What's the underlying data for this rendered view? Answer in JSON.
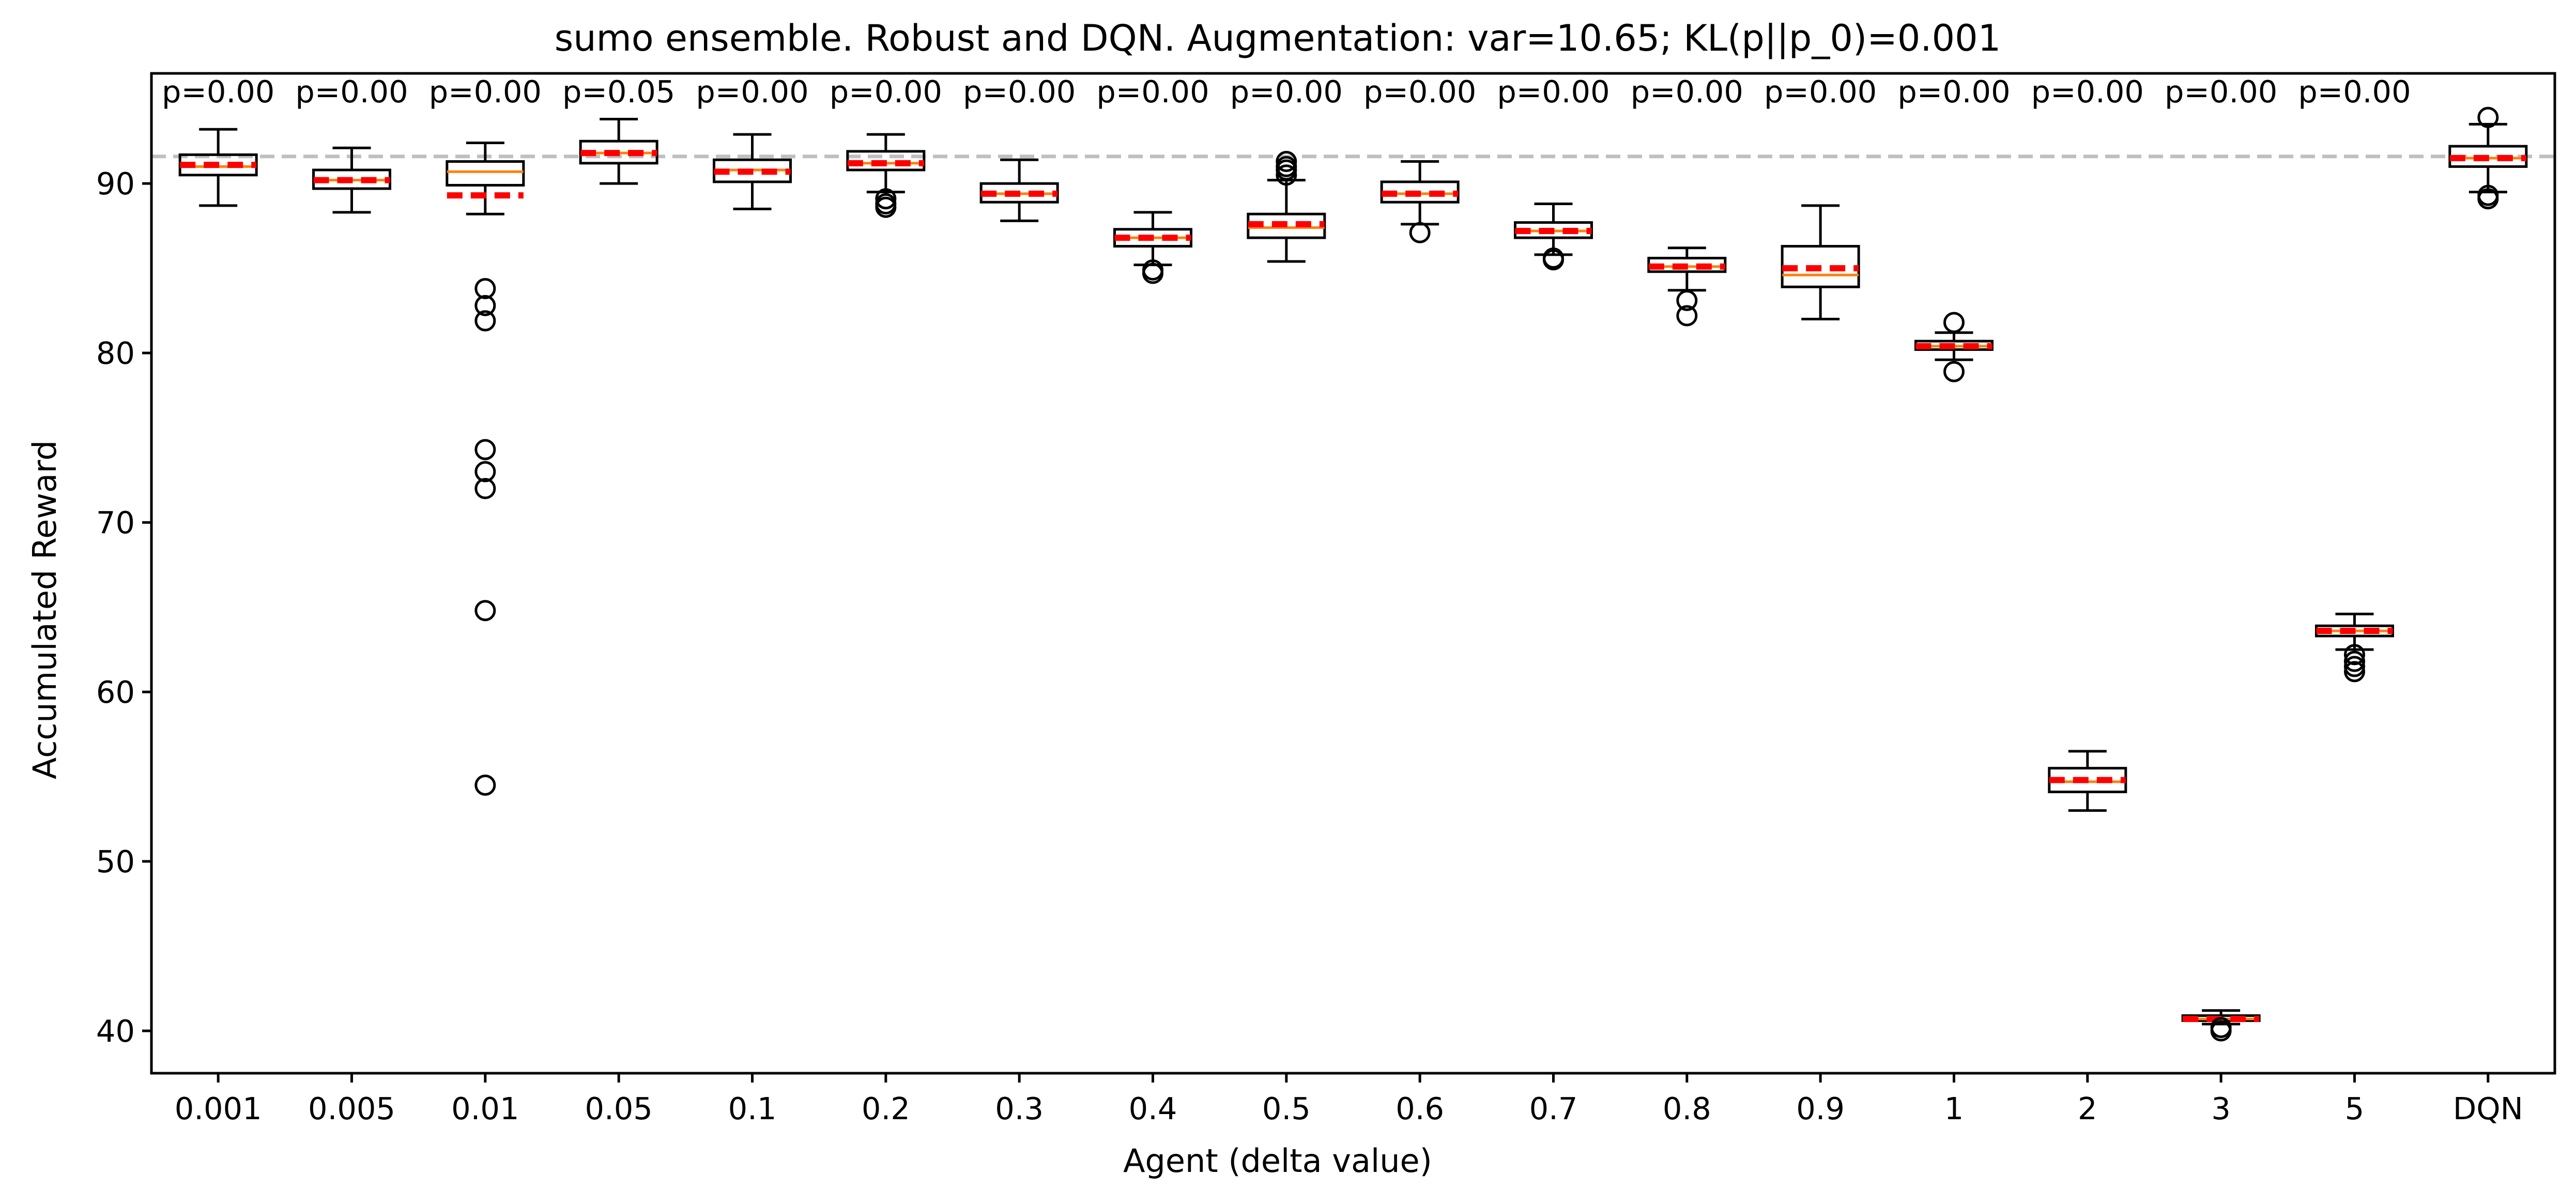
{
  "chart_data": {
    "type": "box",
    "title": "sumo ensemble. Robust and DQN. Augmentation: var=10.65; KL(p||p_0)=0.001",
    "xlabel": "Agent (delta value)",
    "ylabel": "Accumulated Reward",
    "ylim": [
      37.5,
      96.5
    ],
    "yticks": [
      40,
      50,
      60,
      70,
      80,
      90
    ],
    "reference_line": 91.6,
    "grid": false,
    "categories": [
      "0.001",
      "0.005",
      "0.01",
      "0.05",
      "0.1",
      "0.2",
      "0.3",
      "0.4",
      "0.5",
      "0.6",
      "0.7",
      "0.8",
      "0.9",
      "1",
      "2",
      "3",
      "5",
      "DQN"
    ],
    "p_values": [
      "p=0.00",
      "p=0.00",
      "p=0.00",
      "p=0.05",
      "p=0.00",
      "p=0.00",
      "p=0.00",
      "p=0.00",
      "p=0.00",
      "p=0.00",
      "p=0.00",
      "p=0.00",
      "p=0.00",
      "p=0.00",
      "p=0.00",
      "p=0.00",
      "p=0.00"
    ],
    "boxes": [
      {
        "whislo": 88.7,
        "q1": 90.5,
        "med": 91.0,
        "q3": 91.7,
        "whishi": 93.2,
        "mean": 91.1,
        "fliers": []
      },
      {
        "whislo": 88.3,
        "q1": 89.7,
        "med": 90.2,
        "q3": 90.8,
        "whishi": 92.1,
        "mean": 90.2,
        "fliers": []
      },
      {
        "whislo": 88.2,
        "q1": 89.9,
        "med": 90.7,
        "q3": 91.3,
        "whishi": 92.4,
        "mean": 89.3,
        "fliers": [
          83.8,
          82.8,
          81.9,
          74.3,
          73.0,
          72.0,
          64.8,
          54.5
        ]
      },
      {
        "whislo": 90.0,
        "q1": 91.2,
        "med": 91.8,
        "q3": 92.5,
        "whishi": 93.8,
        "mean": 91.8,
        "fliers": []
      },
      {
        "whislo": 88.5,
        "q1": 90.1,
        "med": 90.8,
        "q3": 91.4,
        "whishi": 92.9,
        "mean": 90.7,
        "fliers": []
      },
      {
        "whislo": 89.5,
        "q1": 90.8,
        "med": 91.2,
        "q3": 91.9,
        "whishi": 92.9,
        "mean": 91.2,
        "fliers": [
          89.1,
          88.8,
          88.6
        ]
      },
      {
        "whislo": 87.8,
        "q1": 88.9,
        "med": 89.4,
        "q3": 90.0,
        "whishi": 91.4,
        "mean": 89.4,
        "fliers": []
      },
      {
        "whislo": 85.2,
        "q1": 86.3,
        "med": 86.8,
        "q3": 87.3,
        "whishi": 88.3,
        "mean": 86.8,
        "fliers": [
          84.9,
          84.7
        ]
      },
      {
        "whislo": 85.4,
        "q1": 86.8,
        "med": 87.4,
        "q3": 88.2,
        "whishi": 90.2,
        "mean": 87.6,
        "fliers": [
          91.3,
          91.0,
          90.8,
          90.5
        ]
      },
      {
        "whislo": 87.6,
        "q1": 88.9,
        "med": 89.4,
        "q3": 90.1,
        "whishi": 91.3,
        "mean": 89.4,
        "fliers": [
          87.1
        ]
      },
      {
        "whislo": 85.8,
        "q1": 86.8,
        "med": 87.2,
        "q3": 87.7,
        "whishi": 88.8,
        "mean": 87.2,
        "fliers": [
          85.6,
          85.5
        ]
      },
      {
        "whislo": 83.7,
        "q1": 84.8,
        "med": 85.1,
        "q3": 85.6,
        "whishi": 86.2,
        "mean": 85.1,
        "fliers": [
          83.1,
          82.2
        ]
      },
      {
        "whislo": 82.0,
        "q1": 83.9,
        "med": 84.6,
        "q3": 86.3,
        "whishi": 88.7,
        "mean": 85.0,
        "fliers": []
      },
      {
        "whislo": 79.6,
        "q1": 80.2,
        "med": 80.4,
        "q3": 80.7,
        "whishi": 81.2,
        "mean": 80.4,
        "fliers": [
          81.8,
          78.9
        ]
      },
      {
        "whislo": 53.0,
        "q1": 54.1,
        "med": 54.7,
        "q3": 55.5,
        "whishi": 56.5,
        "mean": 54.8,
        "fliers": []
      },
      {
        "whislo": 40.4,
        "q1": 40.6,
        "med": 40.7,
        "q3": 40.9,
        "whishi": 41.2,
        "mean": 40.7,
        "fliers": [
          40.2,
          40.0
        ]
      },
      {
        "whislo": 62.5,
        "q1": 63.3,
        "med": 63.6,
        "q3": 63.9,
        "whishi": 64.6,
        "mean": 63.6,
        "fliers": [
          62.2,
          61.8,
          61.5,
          61.2
        ]
      },
      {
        "whislo": 89.5,
        "q1": 91.0,
        "med": 91.5,
        "q3": 92.2,
        "whishi": 93.5,
        "mean": 91.5,
        "fliers": [
          93.9,
          89.3,
          89.1
        ]
      }
    ]
  },
  "colors": {
    "box": "#000000",
    "median": "#ff7f0e",
    "mean_line": "#ff0000",
    "reference_line": "#bfbfbf"
  }
}
